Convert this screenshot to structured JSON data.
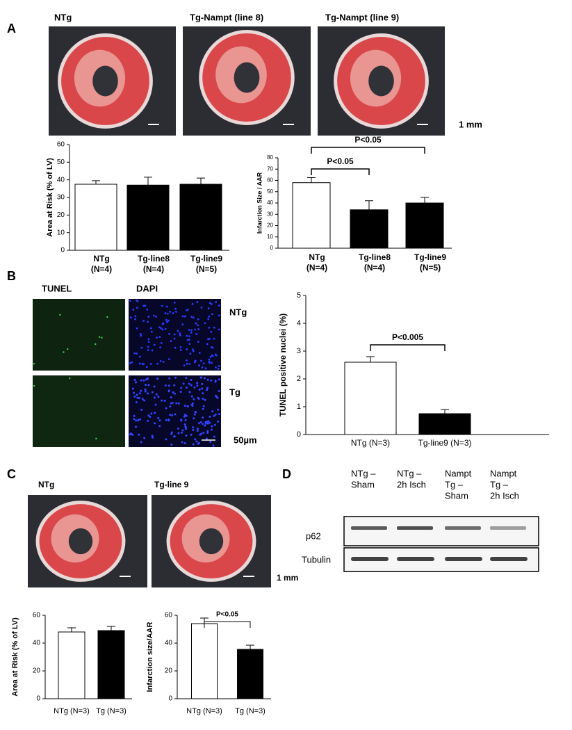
{
  "chart_data": [
    {
      "type": "bar",
      "ylabel": "Area at Risk (% of LV)",
      "categories": [
        [
          "NTg",
          "(N=4)"
        ],
        [
          "Tg-line8",
          "(N=4)"
        ],
        [
          "Tg-line9",
          "(N=5)"
        ]
      ],
      "values": [
        37.5,
        37,
        37.5
      ],
      "errors": [
        2,
        4.5,
        3.5
      ],
      "colors": [
        "#ffffff",
        "#000000",
        "#000000"
      ],
      "ylim": [
        0,
        60
      ],
      "yticks": [
        0,
        10,
        20,
        30,
        40,
        50,
        60
      ],
      "annotations": []
    },
    {
      "type": "bar",
      "ylabel": "Infarction Size / AAR",
      "categories": [
        [
          "NTg",
          "(N=4)"
        ],
        [
          "Tg-line8",
          "(N=4)"
        ],
        [
          "Tg-line9",
          "(N=5)"
        ]
      ],
      "values": [
        58,
        34,
        40
      ],
      "errors": [
        4.5,
        8,
        5
      ],
      "colors": [
        "#ffffff",
        "#000000",
        "#000000"
      ],
      "ylim": [
        0,
        80
      ],
      "yticks": [
        0,
        10,
        20,
        30,
        40,
        50,
        60,
        70,
        80
      ],
      "annotations": [
        "P<0.05",
        "P<0.05"
      ]
    },
    {
      "type": "bar",
      "ylabel": "TUNEL positive nuclei (%)",
      "categories": [
        "NTg (N=3)",
        "Tg-line9  (N=3)"
      ],
      "values": [
        2.6,
        0.75
      ],
      "errors": [
        0.2,
        0.15
      ],
      "colors": [
        "#ffffff",
        "#000000"
      ],
      "ylim": [
        0,
        5
      ],
      "yticks": [
        0,
        1,
        2,
        3,
        4,
        5
      ],
      "annotations": [
        "P<0.005"
      ]
    },
    {
      "type": "bar",
      "ylabel": "Area at Risk (% of LV)",
      "categories": [
        "NTg (N=3)",
        "Tg (N=3)"
      ],
      "values": [
        48,
        49
      ],
      "errors": [
        3,
        3
      ],
      "colors": [
        "#ffffff",
        "#000000"
      ],
      "ylim": [
        0,
        60
      ],
      "yticks": [
        0,
        20,
        40,
        60
      ],
      "annotations": []
    },
    {
      "type": "bar",
      "ylabel": "Infarction size/AAR",
      "categories": [
        "NTg (N=3)",
        "Tg (N=3)"
      ],
      "values": [
        54,
        35.5
      ],
      "errors": [
        4,
        3
      ],
      "colors": [
        "#ffffff",
        "#000000"
      ],
      "ylim": [
        0,
        60
      ],
      "yticks": [
        0,
        20,
        40,
        60
      ],
      "annotations": [
        "P<0.05"
      ]
    }
  ],
  "panels": {
    "letters": [
      "A",
      "B",
      "C",
      "D"
    ],
    "a": {
      "images": [
        "NTg",
        "Tg-Nampt (line 8)",
        "Tg-Nampt (line 9)"
      ],
      "scale": "1 mm"
    },
    "b": {
      "columns": [
        "TUNEL",
        "DAPI"
      ],
      "rows": [
        "NTg",
        "Tg"
      ],
      "scale": "50µm"
    },
    "c": {
      "images": [
        "NTg",
        "Tg-line 9"
      ],
      "scale": "1 mm"
    },
    "d": {
      "columns": [
        [
          "NTg –",
          "Sham"
        ],
        [
          "NTg –",
          "2h Isch"
        ],
        [
          "Nampt",
          "Tg –",
          "Sham"
        ],
        [
          "Nampt",
          "Tg –",
          "2h Isch"
        ]
      ],
      "rows": [
        "p62",
        "Tubulin"
      ]
    }
  }
}
